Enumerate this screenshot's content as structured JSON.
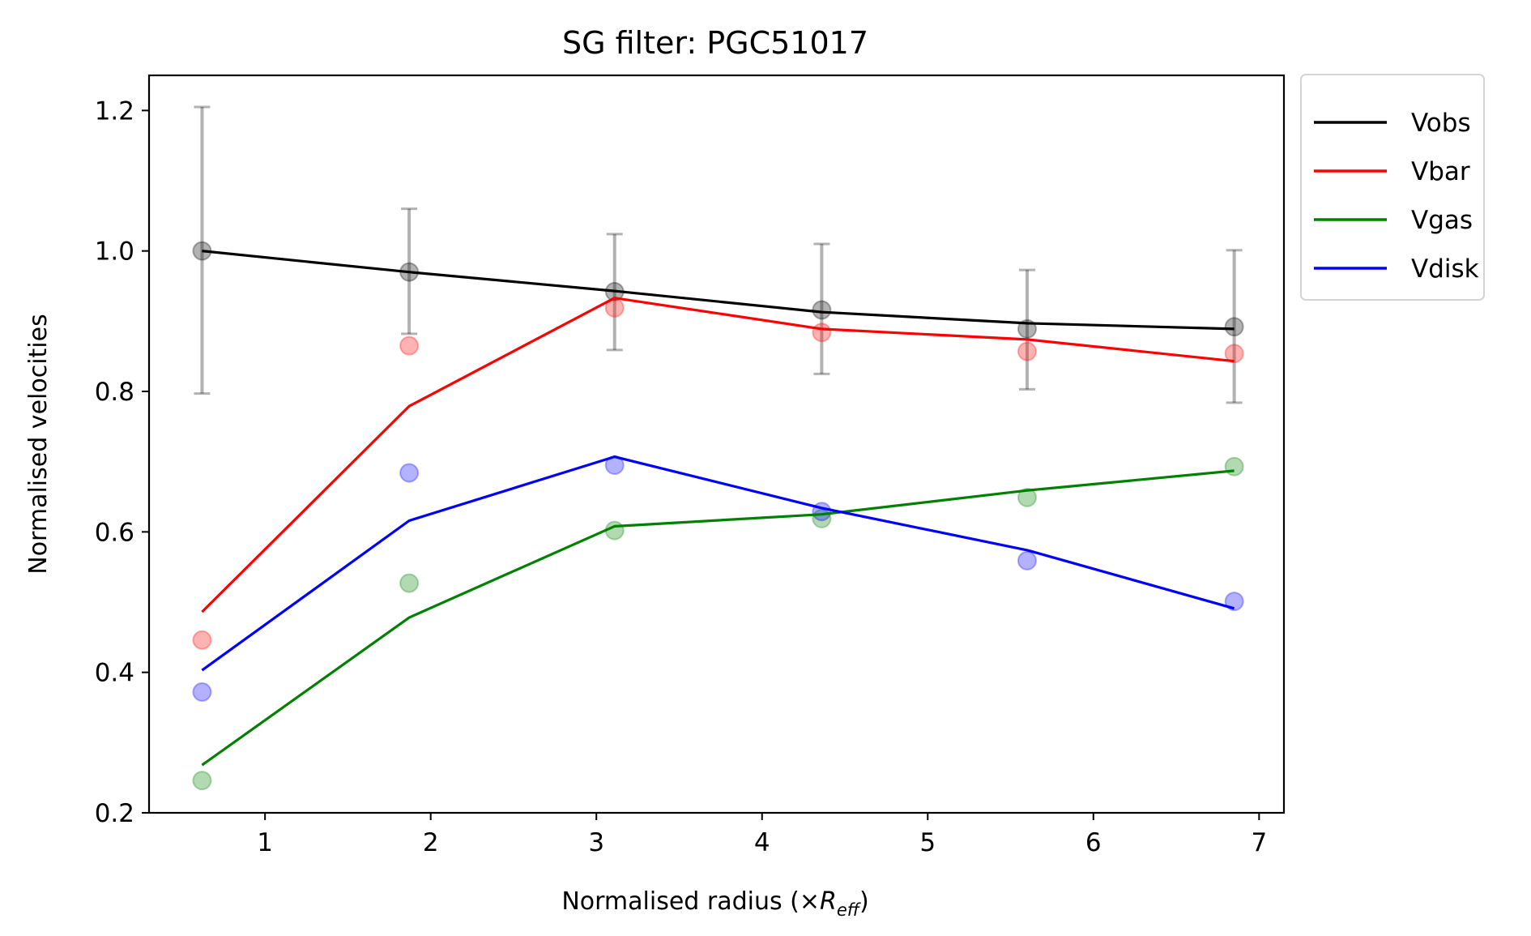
{
  "chart_data": {
    "type": "line",
    "title": "SG filter: PGC51017",
    "xlabel": {
      "prefix": "Normalised radius (×",
      "symbol": "R",
      "subscript": "eff",
      "suffix": ")"
    },
    "ylabel": "Normalised velocities",
    "xlim": [
      0.3,
      7.15
    ],
    "ylim": [
      0.2,
      1.25
    ],
    "xticks": [
      1,
      2,
      3,
      4,
      5,
      6,
      7
    ],
    "yticks": [
      0.2,
      0.4,
      0.6,
      0.8,
      1.0,
      1.2
    ],
    "xtick_labels": [
      "1",
      "2",
      "3",
      "4",
      "5",
      "6",
      "7"
    ],
    "ytick_labels": [
      "0.2",
      "0.4",
      "0.6",
      "0.8",
      "1.0",
      "1.2"
    ],
    "grid": false,
    "legend_position": "outside-top-right",
    "x": [
      0.62,
      1.87,
      3.11,
      4.36,
      5.6,
      6.85
    ],
    "series": [
      {
        "name": "Vobs",
        "color": "#000000",
        "line": [
          1.0,
          0.97,
          0.943,
          0.913,
          0.897,
          0.889
        ],
        "points": [
          1.0,
          0.97,
          0.942,
          0.916,
          0.889,
          0.892
        ],
        "err_low": [
          0.797,
          0.882,
          0.859,
          0.825,
          0.803,
          0.784
        ],
        "err_high": [
          1.205,
          1.06,
          1.024,
          1.01,
          0.973,
          1.001
        ]
      },
      {
        "name": "Vbar",
        "color": "#ff0000",
        "line": [
          0.486,
          0.779,
          0.933,
          0.889,
          0.874,
          0.843
        ],
        "points": [
          0.446,
          0.865,
          0.919,
          0.884,
          0.857,
          0.854
        ]
      },
      {
        "name": "Vgas",
        "color": "#008000",
        "line": [
          0.268,
          0.478,
          0.608,
          0.625,
          0.659,
          0.687
        ],
        "points": [
          0.246,
          0.527,
          0.602,
          0.619,
          0.649,
          0.693
        ]
      },
      {
        "name": "Vdisk",
        "color": "#0000ff",
        "line": [
          0.403,
          0.616,
          0.707,
          0.634,
          0.574,
          0.491
        ],
        "points": [
          0.372,
          0.684,
          0.695,
          0.629,
          0.559,
          0.501
        ]
      }
    ]
  }
}
